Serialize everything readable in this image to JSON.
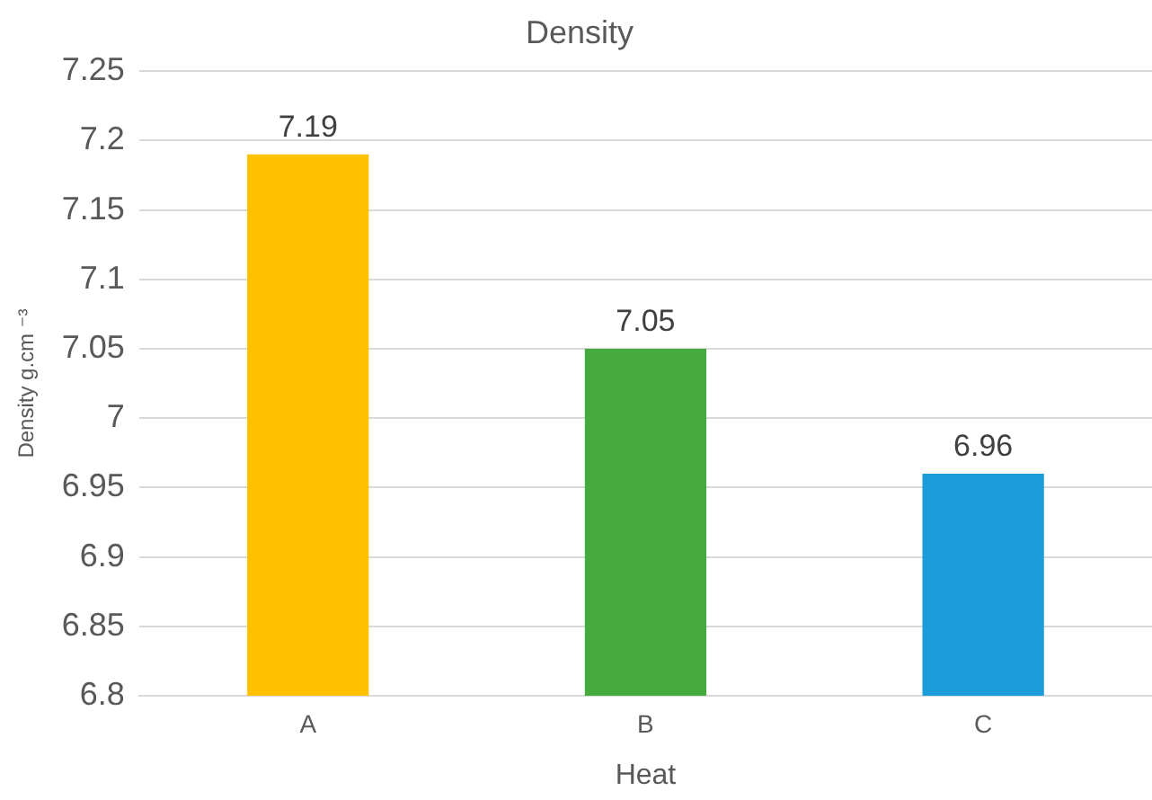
{
  "chart_data": {
    "type": "bar",
    "title": "Density",
    "xlabel": "Heat",
    "ylabel": "Density g.cm ⁻³",
    "categories": [
      "A",
      "B",
      "C"
    ],
    "values": [
      7.19,
      7.05,
      6.96
    ],
    "colors": [
      "#ffc000",
      "#45ab3e",
      "#1b9bd7"
    ],
    "ylim": [
      6.8,
      7.25
    ],
    "yticks": [
      6.8,
      6.85,
      6.9,
      6.95,
      7,
      7.05,
      7.1,
      7.15,
      7.2,
      7.25
    ],
    "grid": "y",
    "data_labels": true,
    "legend": false
  }
}
